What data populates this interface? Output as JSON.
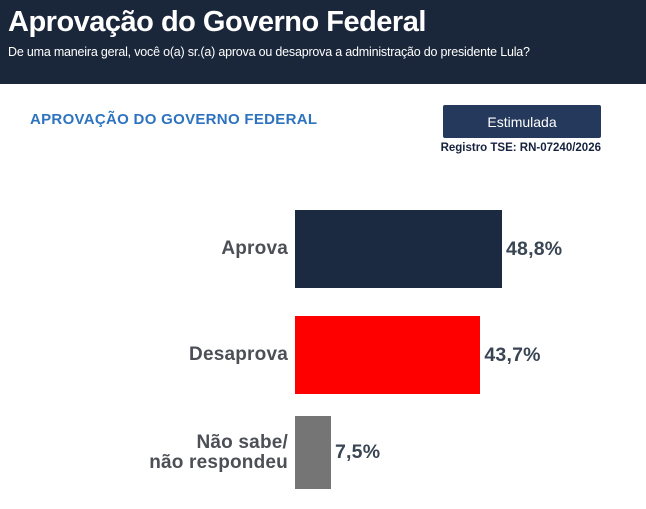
{
  "header": {
    "title": "Aprovação do Governo Federal",
    "subtitle": "De uma maneira geral, você o(a) sr.(a) aprova ou desaprova a administração do presidente Lula?"
  },
  "section": {
    "title": "APROVAÇÃO DO GOVERNO FEDERAL",
    "badge_label": "Estimulada",
    "registry": "Registro TSE: RN-07240/2026"
  },
  "chart_data": {
    "type": "bar",
    "orientation": "horizontal",
    "title": "Aprovação do Governo Federal",
    "categories": [
      "Aprova",
      "Desaprova",
      "Não sabe/\nnão respondeu"
    ],
    "values": [
      48.8,
      43.7,
      7.5
    ],
    "value_labels": [
      "48,8%",
      "43,7%",
      "7,5%"
    ],
    "bar_colors": [
      "#1b2a40",
      "#fe0000",
      "#757575"
    ],
    "unit": "%",
    "xlim": [
      0,
      50
    ],
    "grid": false,
    "legend": false
  },
  "colors": {
    "header_bg": "#1a2639",
    "blue": "#2e73c0",
    "badge_bg": "#24395c",
    "registry_color": "#16233f",
    "label_color": "#4c4f56",
    "value_color": "#3a4553",
    "approve_navy": "#1b2a40",
    "disapprove_red": "#fe0000",
    "neutral_gray": "#757575"
  }
}
